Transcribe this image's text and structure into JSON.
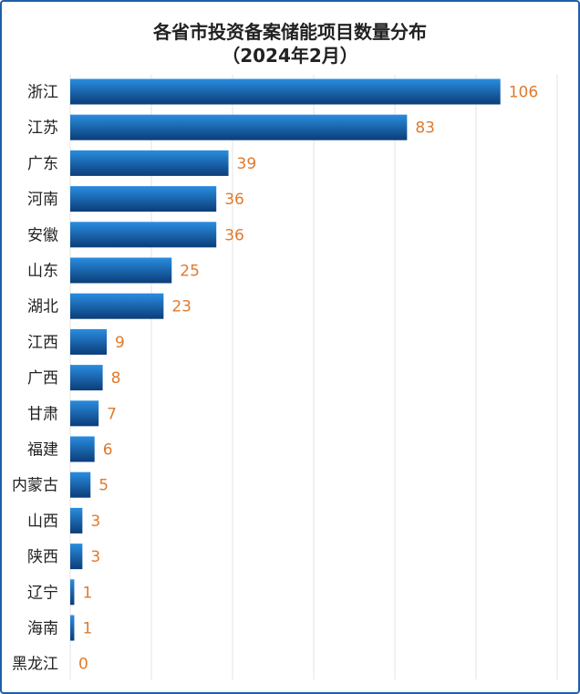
{
  "chart_data": {
    "type": "bar",
    "orientation": "horizontal",
    "title": "各省市投资备案储能项目数量分布",
    "subtitle": "（2024年2月）",
    "categories": [
      "浙江",
      "江苏",
      "广东",
      "河南",
      "安徽",
      "山东",
      "湖北",
      "江西",
      "广西",
      "甘肃",
      "福建",
      "内蒙古",
      "山西",
      "陕西",
      "辽宁",
      "海南",
      "黑龙江"
    ],
    "values": [
      106,
      83,
      39,
      36,
      36,
      25,
      23,
      9,
      8,
      7,
      6,
      5,
      3,
      3,
      1,
      1,
      0
    ],
    "xlim": [
      0,
      120
    ],
    "grid": true,
    "colors": {
      "bar_top": "#2a8de0",
      "bar_bottom": "#0b3d78",
      "value_label": "#e07a2e",
      "frame": "#1f5fa8",
      "grid": "#e3e3e3"
    }
  }
}
